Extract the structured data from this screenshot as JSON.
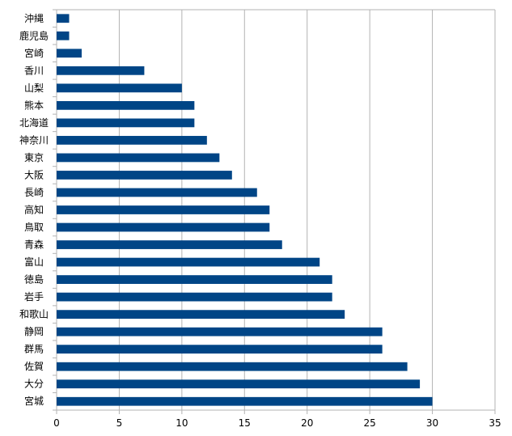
{
  "chart_data": {
    "type": "bar",
    "orientation": "horizontal",
    "title": "",
    "xlabel": "",
    "ylabel": "",
    "categories": [
      "沖縄",
      "鹿児島",
      "宮崎",
      "香川",
      "山梨",
      "熊本",
      "北海道",
      "神奈川",
      "東京",
      "大阪",
      "長崎",
      "高知",
      "鳥取",
      "青森",
      "富山",
      "徳島",
      "岩手",
      "和歌山",
      "静岡",
      "群馬",
      "佐賀",
      "大分",
      "宮城"
    ],
    "values": [
      1,
      1,
      2,
      7,
      10,
      11,
      11,
      12,
      13,
      14,
      16,
      17,
      17,
      18,
      21,
      22,
      22,
      23,
      26,
      26,
      28,
      29,
      30
    ],
    "xlim": [
      0,
      35
    ],
    "xticks": [
      "0",
      "5",
      "10",
      "15",
      "20",
      "25",
      "30",
      "35"
    ],
    "grid": "vertical",
    "legend": "none",
    "colors": {
      "bar": "#004586",
      "grid": "#b3b3b3",
      "axis": "#b3b3b3"
    }
  }
}
